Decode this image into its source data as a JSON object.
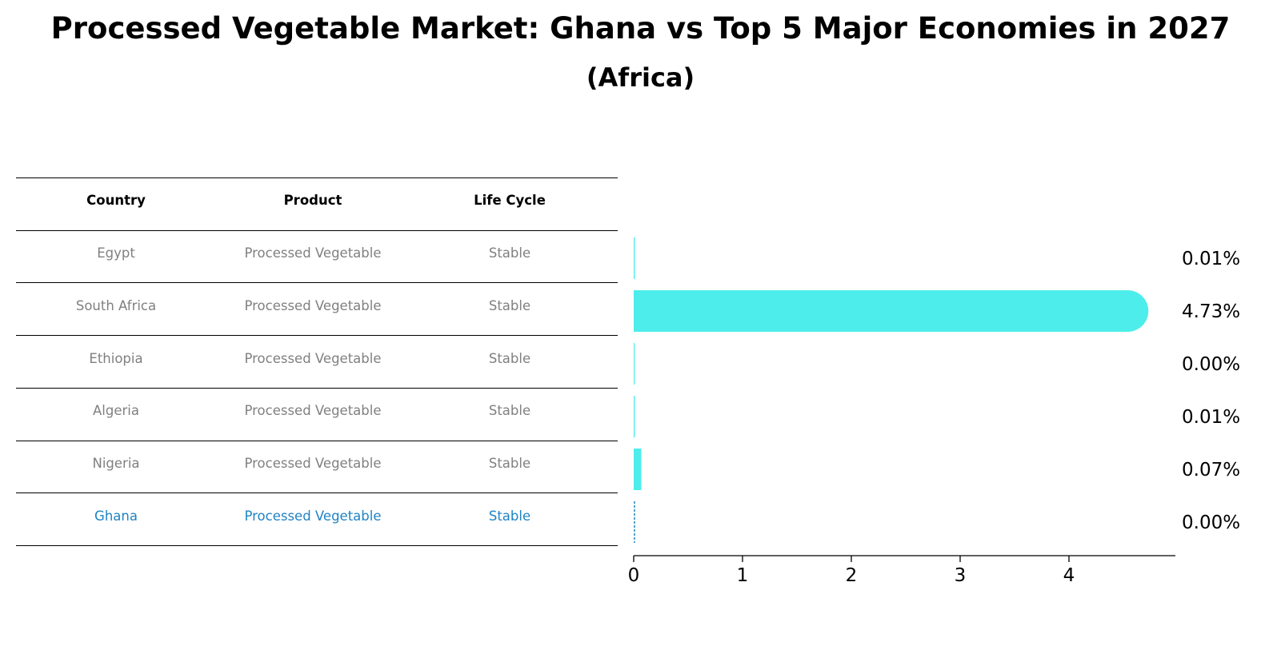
{
  "title": "Processed Vegetable Market: Ghana vs Top 5 Major Economies in 2027",
  "subtitle": "(Africa)",
  "table": {
    "headers": [
      "Country",
      "Product",
      "Life Cycle"
    ],
    "rows": [
      {
        "country": "Egypt",
        "product": "Processed Vegetable",
        "life_cycle": "Stable",
        "highlight": false
      },
      {
        "country": "South Africa",
        "product": "Processed Vegetable",
        "life_cycle": "Stable",
        "highlight": false
      },
      {
        "country": "Ethiopia",
        "product": "Processed Vegetable",
        "life_cycle": "Stable",
        "highlight": false
      },
      {
        "country": "Algeria",
        "product": "Processed Vegetable",
        "life_cycle": "Stable",
        "highlight": false
      },
      {
        "country": "Nigeria",
        "product": "Processed Vegetable",
        "life_cycle": "Stable",
        "highlight": false
      },
      {
        "country": "Ghana",
        "product": "Processed Vegetable",
        "life_cycle": "Stable",
        "highlight": true
      }
    ]
  },
  "colors": {
    "bar": "#4dedeb",
    "highlight": "#1f83c4",
    "muted_text": "#808080",
    "axis": "#000000"
  },
  "chart_data": {
    "type": "bar",
    "orientation": "horizontal",
    "categories": [
      "Egypt",
      "South Africa",
      "Ethiopia",
      "Algeria",
      "Nigeria",
      "Ghana"
    ],
    "values": [
      0.01,
      4.73,
      0.0,
      0.01,
      0.07,
      0.0
    ],
    "value_labels": [
      "0.01%",
      "4.73%",
      "0.00%",
      "0.01%",
      "0.07%",
      "0.00%"
    ],
    "highlight_category": "Ghana",
    "xlim": [
      0,
      5
    ],
    "xticks": [
      0,
      1,
      2,
      3,
      4
    ],
    "grid": false
  }
}
